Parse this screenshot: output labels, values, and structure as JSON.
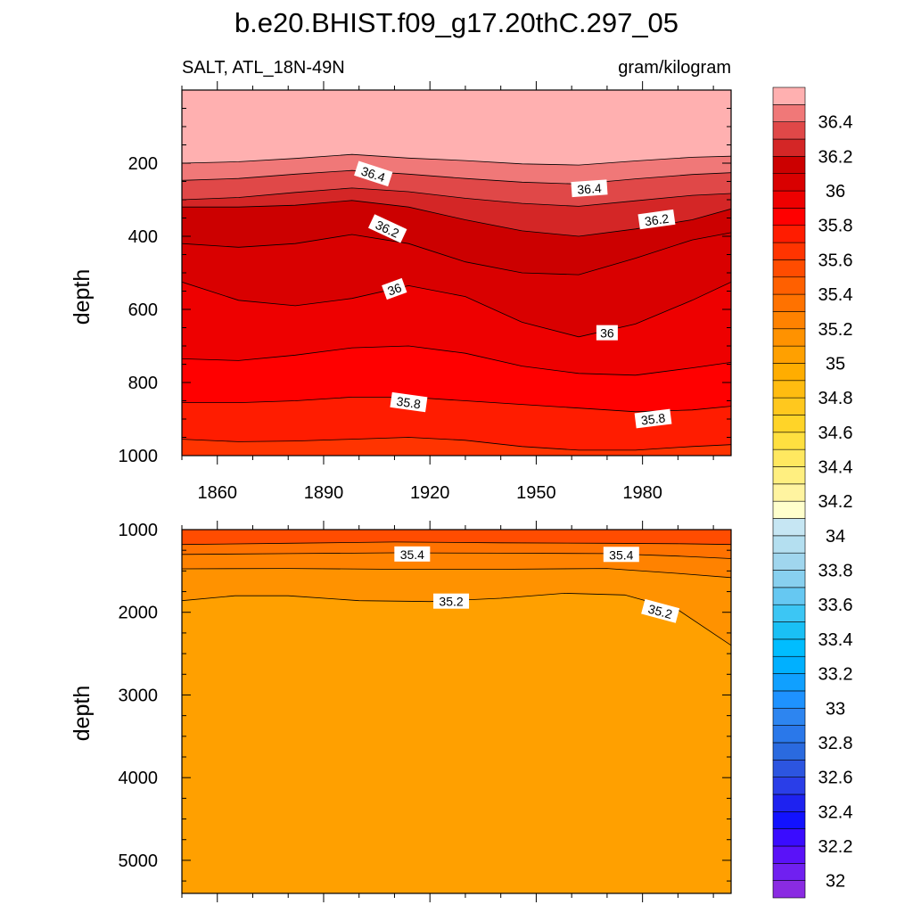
{
  "figure": {
    "title": "b.e20.BHIST.f09_g17.20thC.297_05",
    "variable_label": "SALT, ATL_18N-49N",
    "units_label": "gram/kilogram"
  },
  "chart_data": [
    {
      "type": "contour",
      "panel": "upper",
      "xlabel": "",
      "ylabel": "depth",
      "xlim": [
        1850,
        2005
      ],
      "ylim": [
        1000,
        0
      ],
      "x_ticks": [
        1860,
        1890,
        1920,
        1950,
        1980
      ],
      "y_ticks": [
        200,
        400,
        600,
        800,
        1000
      ],
      "fill_below_last": 35.7,
      "contours": [
        {
          "level": 36.6,
          "x": [
            1850,
            1866,
            1882,
            1898,
            1914,
            1930,
            1946,
            1962,
            1978,
            1994,
            2005
          ],
          "depth": [
            200,
            196,
            187,
            176,
            186,
            193,
            202,
            205,
            194,
            184,
            181
          ]
        },
        {
          "level": 36.5,
          "x": [
            1850,
            1866,
            1882,
            1898,
            1914,
            1930,
            1946,
            1962,
            1978,
            1994,
            2005
          ],
          "depth": [
            247,
            242,
            230,
            220,
            230,
            242,
            252,
            257,
            243,
            231,
            226
          ]
        },
        {
          "level": 36.4,
          "x": [
            1850,
            1866,
            1882,
            1898,
            1914,
            1930,
            1946,
            1962,
            1978,
            1994,
            2005
          ],
          "depth": [
            300,
            294,
            280,
            268,
            278,
            296,
            310,
            318,
            303,
            288,
            283
          ]
        },
        {
          "level": 36.3,
          "x": [
            1850,
            1866,
            1882,
            1898,
            1914,
            1930,
            1946,
            1962,
            1978,
            1994,
            2005
          ],
          "depth": [
            320,
            320,
            315,
            302,
            320,
            355,
            385,
            400,
            380,
            355,
            325
          ]
        },
        {
          "level": 36.2,
          "x": [
            1850,
            1866,
            1882,
            1898,
            1914,
            1930,
            1946,
            1962,
            1978,
            1994,
            2005
          ],
          "depth": [
            420,
            430,
            420,
            395,
            420,
            470,
            500,
            505,
            460,
            410,
            390
          ]
        },
        {
          "level": 36.1,
          "x": [
            1850,
            1866,
            1882,
            1898,
            1914,
            1930,
            1946,
            1962,
            1978,
            1994,
            2005
          ],
          "depth": [
            525,
            575,
            590,
            570,
            535,
            565,
            635,
            675,
            640,
            575,
            525
          ]
        },
        {
          "level": 36.0,
          "x": [
            1850,
            1866,
            1882,
            1898,
            1914,
            1930,
            1946,
            1962,
            1978,
            1994,
            2005
          ],
          "depth": [
            735,
            740,
            725,
            705,
            700,
            720,
            755,
            775,
            780,
            760,
            745
          ]
        },
        {
          "level": 35.9,
          "x": [
            1850,
            1866,
            1882,
            1898,
            1914,
            1930,
            1946,
            1962,
            1978,
            1994,
            2005
          ],
          "depth": [
            855,
            855,
            850,
            840,
            840,
            850,
            860,
            870,
            880,
            875,
            865
          ]
        },
        {
          "level": 35.8,
          "x": [
            1850,
            1866,
            1882,
            1898,
            1914,
            1930,
            1946,
            1962,
            1978,
            1994,
            2005
          ],
          "depth": [
            955,
            962,
            960,
            955,
            950,
            958,
            975,
            985,
            985,
            975,
            970
          ]
        }
      ],
      "labels": [
        {
          "text": "36.4",
          "x": 1904,
          "depth": 230,
          "angle": 18
        },
        {
          "text": "36.4",
          "x": 1965,
          "depth": 270,
          "angle": -4
        },
        {
          "text": "36.2",
          "x": 1908,
          "depth": 380,
          "angle": 25
        },
        {
          "text": "36.2",
          "x": 1984,
          "depth": 355,
          "angle": -8
        },
        {
          "text": "36",
          "x": 1910,
          "depth": 545,
          "angle": -20
        },
        {
          "text": "36",
          "x": 1970,
          "depth": 665,
          "angle": 0
        },
        {
          "text": "35.8",
          "x": 1914,
          "depth": 855,
          "angle": 8
        },
        {
          "text": "35.8",
          "x": 1983,
          "depth": 900,
          "angle": -7
        }
      ]
    },
    {
      "type": "contour",
      "panel": "lower",
      "xlabel": "",
      "ylabel": "depth",
      "xlim": [
        1850,
        2005
      ],
      "ylim": [
        5400,
        1000
      ],
      "x_ticks": [
        1860,
        1890,
        1920,
        1950,
        1980
      ],
      "y_ticks": [
        1000,
        2000,
        3000,
        4000,
        5000
      ],
      "fill_top": 35.6,
      "fill_below_last": 35.1,
      "contours": [
        {
          "level": 35.5,
          "x": [
            1850,
            1880,
            1910,
            1940,
            1970,
            1990,
            2005
          ],
          "depth": [
            1180,
            1165,
            1150,
            1160,
            1165,
            1170,
            1180
          ]
        },
        {
          "level": 35.4,
          "x": [
            1850,
            1880,
            1910,
            1940,
            1970,
            1990,
            2005
          ],
          "depth": [
            1300,
            1290,
            1280,
            1285,
            1290,
            1320,
            1350
          ]
        },
        {
          "level": 35.3,
          "x": [
            1850,
            1880,
            1910,
            1940,
            1970,
            1990,
            2005
          ],
          "depth": [
            1475,
            1470,
            1480,
            1480,
            1470,
            1530,
            1580
          ]
        },
        {
          "level": 35.2,
          "x": [
            1850,
            1865,
            1880,
            1900,
            1920,
            1940,
            1958,
            1975,
            1990,
            2005
          ],
          "depth": [
            1860,
            1800,
            1800,
            1860,
            1870,
            1830,
            1770,
            1790,
            1970,
            2400
          ]
        }
      ],
      "labels": [
        {
          "text": "35.4",
          "x": 1915,
          "depth": 1300,
          "angle": 0
        },
        {
          "text": "35.4",
          "x": 1974,
          "depth": 1305,
          "angle": 0
        },
        {
          "text": "35.2",
          "x": 1926,
          "depth": 1870,
          "angle": 0
        },
        {
          "text": "35.2",
          "x": 1985,
          "depth": 1990,
          "angle": 15
        }
      ]
    }
  ],
  "colorbar": {
    "levels": [
      32.0,
      32.1,
      32.2,
      32.3,
      32.4,
      32.5,
      32.6,
      32.7,
      32.8,
      32.9,
      33.0,
      33.1,
      33.2,
      33.3,
      33.4,
      33.5,
      33.6,
      33.7,
      33.8,
      33.9,
      34.0,
      34.1,
      34.2,
      34.3,
      34.4,
      34.5,
      34.6,
      34.7,
      34.8,
      34.9,
      35.0,
      35.1,
      35.2,
      35.3,
      35.4,
      35.5,
      35.6,
      35.7,
      35.8,
      35.9,
      36.0,
      36.1,
      36.2,
      36.3,
      36.4,
      36.5,
      36.6
    ],
    "colors": [
      "#8a2be2",
      "#7020f0",
      "#5a12f8",
      "#3a0cff",
      "#1212ff",
      "#1e22f0",
      "#2a3ee8",
      "#2c55e0",
      "#2a6adf",
      "#2a78ea",
      "#2d85f0",
      "#1e92ff",
      "#10a0ff",
      "#00b0ff",
      "#00bdff",
      "#1ac0f5",
      "#3cc6f4",
      "#66c8f2",
      "#88d0ef",
      "#a0d6ee",
      "#b4dff0",
      "#c6e6f3",
      "#ffffcc",
      "#fff4a0",
      "#ffef80",
      "#ffe860",
      "#ffe040",
      "#ffd428",
      "#ffc81e",
      "#ffbc10",
      "#ffad00",
      "#ffa000",
      "#ff9200",
      "#ff8200",
      "#ff7200",
      "#ff6000",
      "#ff4c00",
      "#ff3400",
      "#ff1c00",
      "#ff0000",
      "#ee0000",
      "#d90000",
      "#cc0000",
      "#d42626",
      "#e04848",
      "#f07878",
      "#ffb0b0"
    ],
    "tick_labels": [
      "32",
      "32.2",
      "32.4",
      "32.6",
      "32.8",
      "33",
      "33.2",
      "33.4",
      "33.6",
      "33.8",
      "34",
      "34.2",
      "34.4",
      "34.6",
      "34.8",
      "35",
      "35.2",
      "35.4",
      "35.6",
      "35.8",
      "36",
      "36.2",
      "36.4"
    ]
  }
}
